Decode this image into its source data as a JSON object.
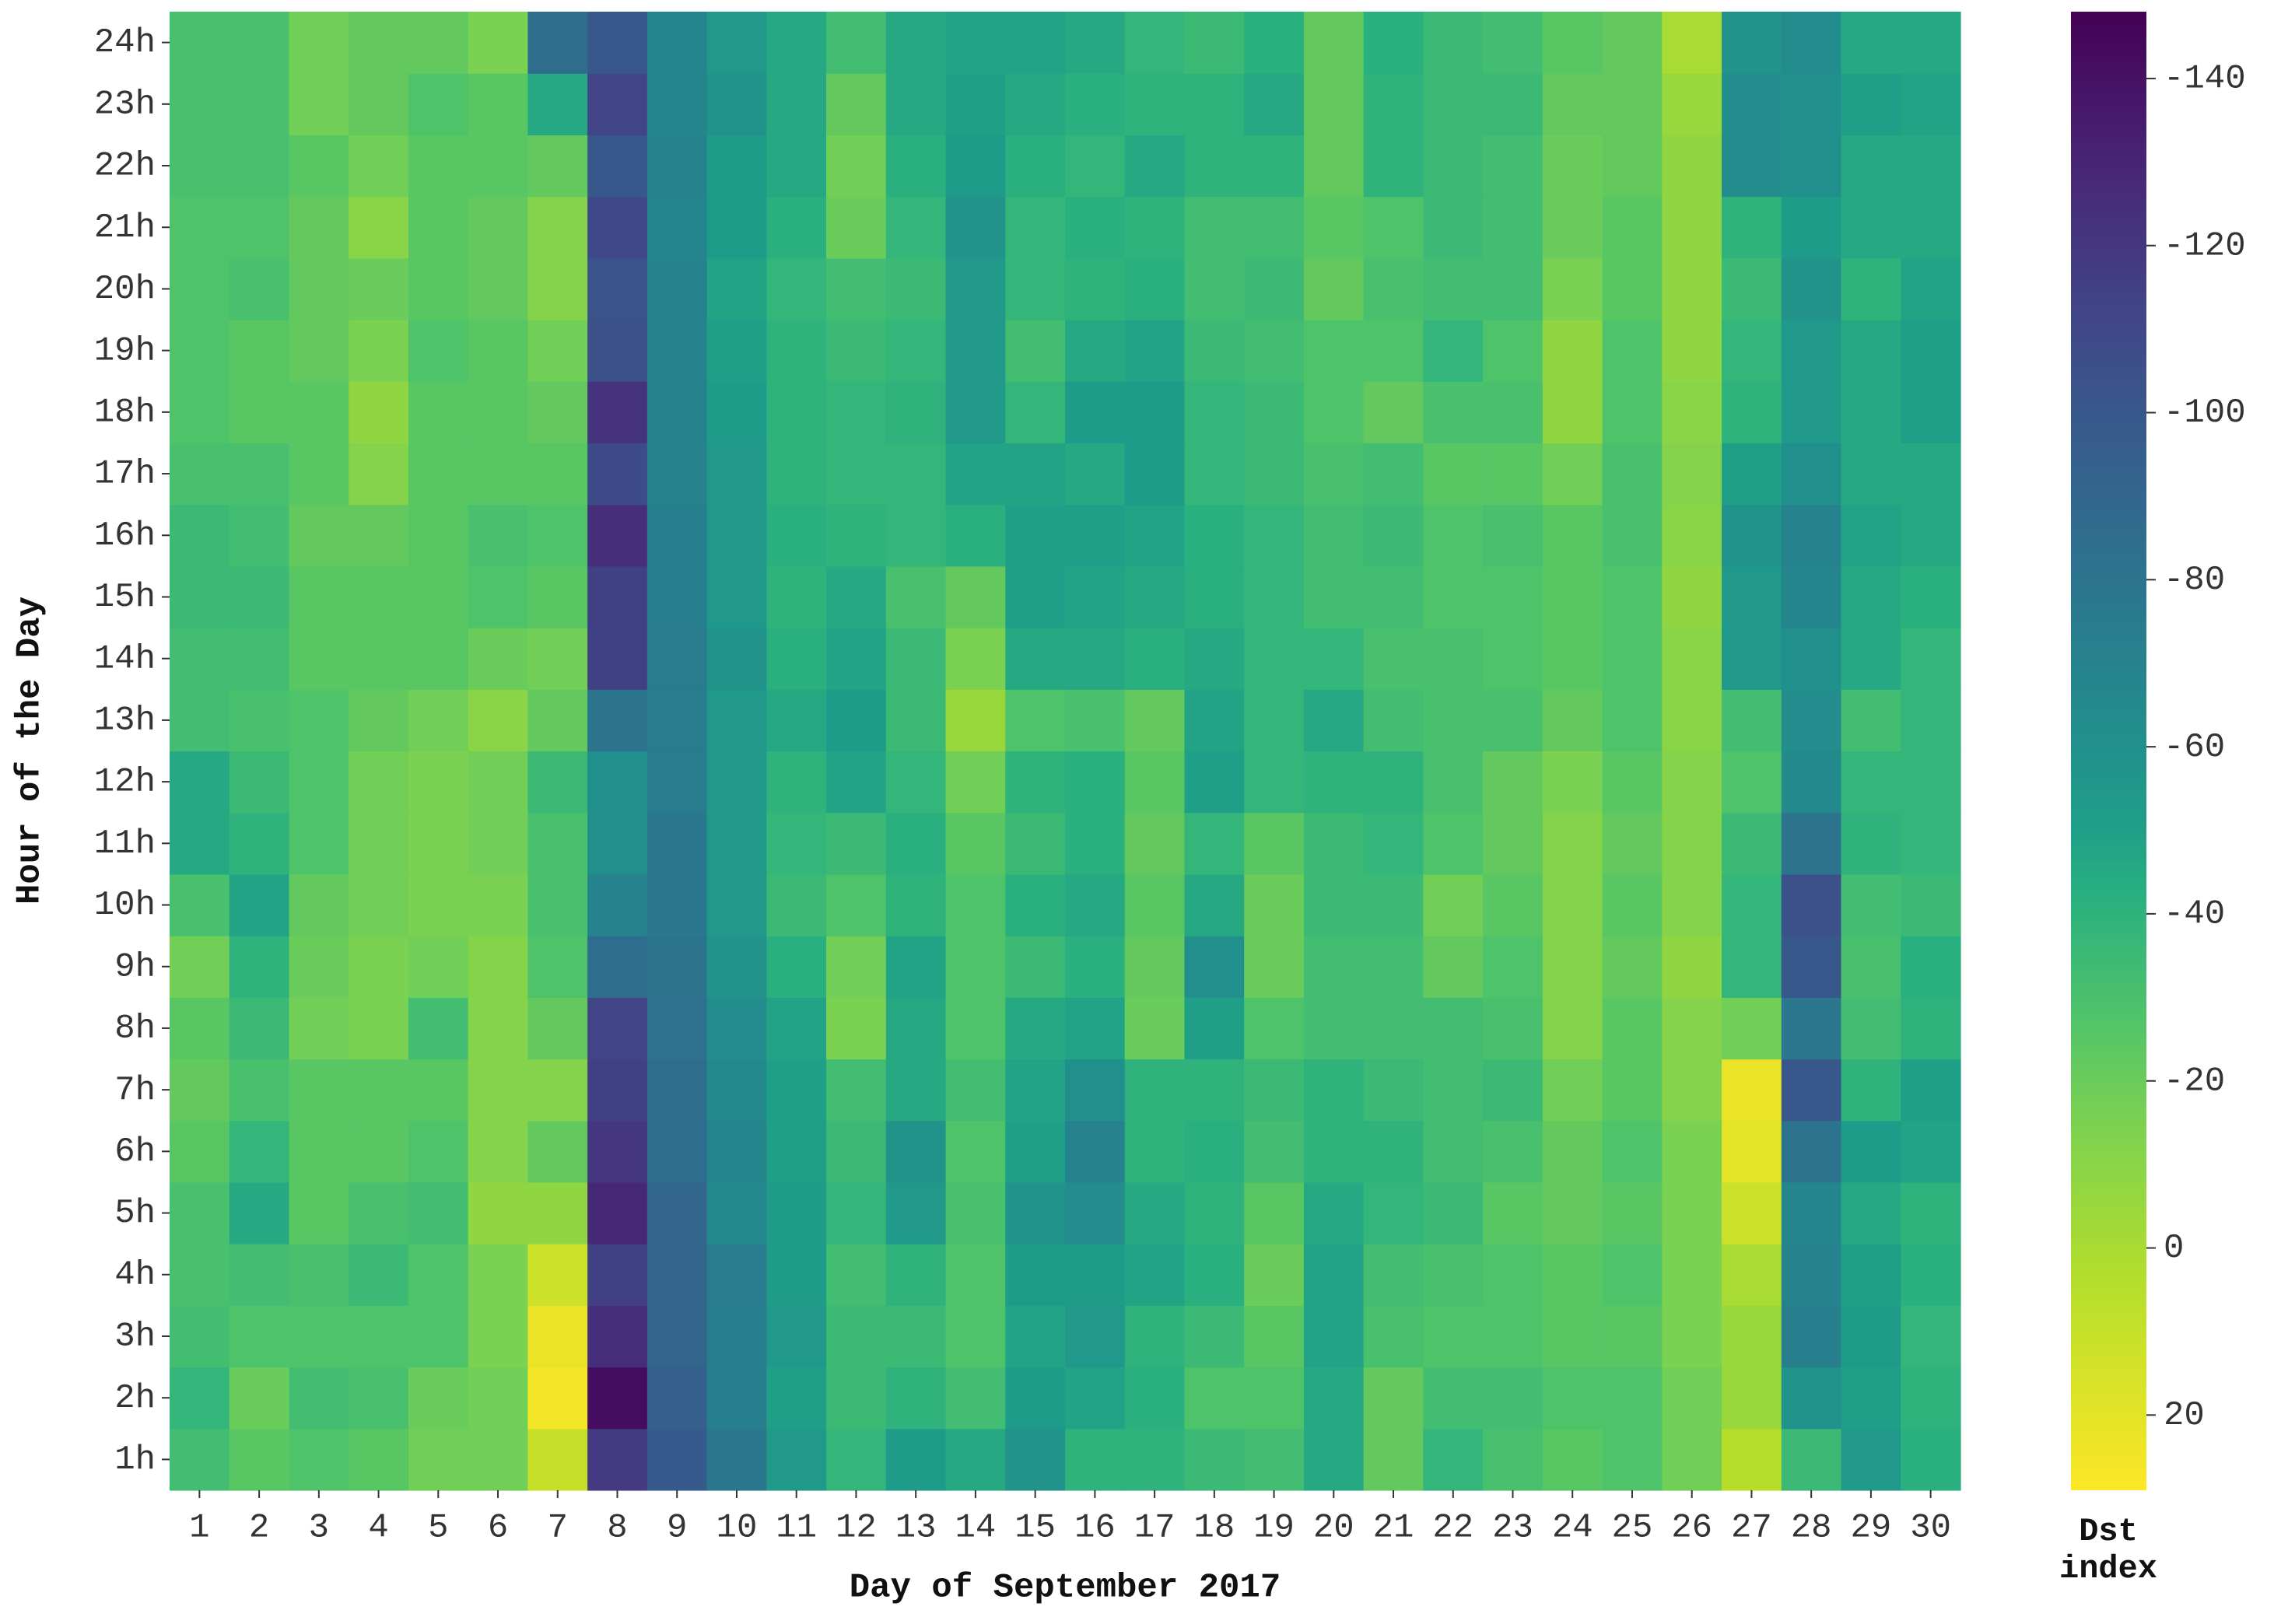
{
  "chart_data": {
    "type": "heatmap",
    "x_label": "Day of September 2017",
    "y_label": "Hour of the Day",
    "colorbar_label": "Dst index",
    "colormap": "viridis",
    "categories": [
      "1",
      "2",
      "3",
      "4",
      "5",
      "6",
      "7",
      "8",
      "9",
      "10",
      "11",
      "12",
      "13",
      "14",
      "15",
      "16",
      "17",
      "18",
      "19",
      "20",
      "21",
      "22",
      "23",
      "24",
      "25",
      "26",
      "27",
      "28",
      "29",
      "30"
    ],
    "y_categories": [
      "1h",
      "2h",
      "3h",
      "4h",
      "5h",
      "6h",
      "7h",
      "8h",
      "9h",
      "10h",
      "11h",
      "12h",
      "13h",
      "14h",
      "15h",
      "16h",
      "17h",
      "18h",
      "19h",
      "20h",
      "21h",
      "22h",
      "23h",
      "24h"
    ],
    "z": [
      [
        -32,
        -25,
        -28,
        -25,
        -18,
        -18,
        10,
        -118,
        -98,
        -78,
        -55,
        -38,
        -52,
        -45,
        -58,
        -40,
        -40,
        -35,
        -32,
        -45,
        -22,
        -38,
        -30,
        -25,
        -28,
        -18,
        5,
        -35,
        -55,
        -42
      ],
      [
        -38,
        -20,
        -32,
        -30,
        -20,
        -18,
        26,
        -142,
        -95,
        -72,
        -50,
        -35,
        -40,
        -32,
        -52,
        -48,
        -42,
        -28,
        -28,
        -45,
        -22,
        -32,
        -32,
        -28,
        -28,
        -18,
        -5,
        -58,
        -50,
        -40
      ],
      [
        -32,
        -28,
        -28,
        -28,
        -28,
        -15,
        22,
        -125,
        -90,
        -72,
        -55,
        -35,
        -35,
        -28,
        -48,
        -55,
        -40,
        -35,
        -25,
        -48,
        -30,
        -28,
        -28,
        -25,
        -25,
        -15,
        -5,
        -72,
        -52,
        -38
      ],
      [
        -30,
        -32,
        -30,
        -35,
        -28,
        -15,
        12,
        -115,
        -90,
        -75,
        -52,
        -32,
        -40,
        -28,
        -52,
        -52,
        -48,
        -42,
        -20,
        -48,
        -32,
        -30,
        -28,
        -25,
        -28,
        -15,
        0,
        -70,
        -50,
        -42
      ],
      [
        -30,
        -45,
        -25,
        -30,
        -32,
        -8,
        -8,
        -128,
        -90,
        -65,
        -52,
        -38,
        -55,
        -30,
        -58,
        -62,
        -45,
        -40,
        -25,
        -45,
        -38,
        -35,
        -25,
        -22,
        -25,
        -15,
        12,
        -68,
        -45,
        -40
      ],
      [
        -25,
        -38,
        -25,
        -25,
        -28,
        -12,
        -22,
        -120,
        -85,
        -68,
        -50,
        -35,
        -58,
        -28,
        -50,
        -70,
        -40,
        -42,
        -32,
        -40,
        -40,
        -32,
        -30,
        -22,
        -28,
        -15,
        20,
        -80,
        -52,
        -48
      ],
      [
        -22,
        -30,
        -25,
        -25,
        -25,
        -12,
        -12,
        -115,
        -85,
        -65,
        -50,
        -32,
        -45,
        -32,
        -48,
        -60,
        -40,
        -40,
        -35,
        -40,
        -35,
        -32,
        -35,
        -18,
        -25,
        -12,
        22,
        -100,
        -40,
        -50
      ],
      [
        -25,
        -35,
        -18,
        -15,
        -32,
        -12,
        -22,
        -112,
        -82,
        -62,
        -48,
        -15,
        -45,
        -28,
        -45,
        -48,
        -20,
        -50,
        -28,
        -32,
        -32,
        -32,
        -30,
        -12,
        -25,
        -12,
        -18,
        -78,
        -32,
        -40
      ],
      [
        -18,
        -40,
        -20,
        -15,
        -18,
        -12,
        -28,
        -85,
        -80,
        -58,
        -42,
        -18,
        -48,
        -28,
        -35,
        -42,
        -22,
        -60,
        -20,
        -32,
        -32,
        -22,
        -28,
        -12,
        -22,
        -8,
        -38,
        -100,
        -30,
        -42
      ],
      [
        -30,
        -48,
        -22,
        -18,
        -15,
        -15,
        -30,
        -70,
        -78,
        -55,
        -35,
        -28,
        -40,
        -28,
        -42,
        -45,
        -25,
        -45,
        -20,
        -35,
        -35,
        -18,
        -25,
        -12,
        -25,
        -12,
        -38,
        -105,
        -32,
        -35
      ],
      [
        -45,
        -40,
        -28,
        -18,
        -15,
        -18,
        -30,
        -60,
        -78,
        -55,
        -38,
        -35,
        -42,
        -25,
        -35,
        -42,
        -22,
        -38,
        -25,
        -35,
        -38,
        -28,
        -22,
        -12,
        -22,
        -12,
        -35,
        -80,
        -40,
        -38
      ],
      [
        -45,
        -35,
        -28,
        -18,
        -15,
        -18,
        -35,
        -60,
        -75,
        -55,
        -40,
        -48,
        -38,
        -18,
        -40,
        -42,
        -25,
        -50,
        -38,
        -40,
        -40,
        -30,
        -22,
        -15,
        -25,
        -12,
        -28,
        -65,
        -38,
        -38
      ],
      [
        -32,
        -30,
        -28,
        -22,
        -18,
        -10,
        -22,
        -80,
        -75,
        -55,
        -45,
        -52,
        -35,
        -5,
        -28,
        -30,
        -22,
        -48,
        -38,
        -45,
        -32,
        -30,
        -30,
        -22,
        -28,
        -10,
        -32,
        -62,
        -32,
        -38
      ],
      [
        -32,
        -32,
        -25,
        -25,
        -25,
        -20,
        -18,
        -115,
        -75,
        -58,
        -42,
        -48,
        -35,
        -15,
        -45,
        -45,
        -42,
        -45,
        -38,
        -38,
        -30,
        -30,
        -28,
        -25,
        -28,
        -10,
        -55,
        -60,
        -45,
        -38
      ],
      [
        -35,
        -35,
        -25,
        -25,
        -25,
        -28,
        -25,
        -115,
        -72,
        -55,
        -40,
        -45,
        -30,
        -22,
        -50,
        -48,
        -45,
        -42,
        -38,
        -32,
        -32,
        -28,
        -28,
        -25,
        -28,
        -8,
        -55,
        -68,
        -45,
        -42
      ],
      [
        -35,
        -32,
        -22,
        -22,
        -25,
        -30,
        -28,
        -125,
        -72,
        -55,
        -42,
        -40,
        -38,
        -42,
        -50,
        -50,
        -48,
        -42,
        -38,
        -32,
        -35,
        -28,
        -30,
        -25,
        -30,
        -10,
        -58,
        -70,
        -48,
        -45
      ],
      [
        -30,
        -30,
        -25,
        -12,
        -25,
        -25,
        -25,
        -108,
        -70,
        -55,
        -40,
        -38,
        -38,
        -48,
        -48,
        -45,
        -52,
        -38,
        -35,
        -30,
        -32,
        -25,
        -25,
        -18,
        -30,
        -12,
        -50,
        -60,
        -45,
        -45
      ],
      [
        -28,
        -25,
        -25,
        -8,
        -25,
        -25,
        -22,
        -122,
        -70,
        -52,
        -40,
        -38,
        -40,
        -55,
        -38,
        -52,
        -52,
        -38,
        -35,
        -28,
        -22,
        -30,
        -30,
        -8,
        -28,
        -10,
        -40,
        -55,
        -45,
        -50
      ],
      [
        -28,
        -25,
        -22,
        -15,
        -28,
        -25,
        -18,
        -105,
        -70,
        -50,
        -40,
        -35,
        -38,
        -55,
        -32,
        -45,
        -48,
        -35,
        -32,
        -28,
        -28,
        -38,
        -28,
        -8,
        -28,
        -8,
        -38,
        -55,
        -45,
        -50
      ],
      [
        -28,
        -30,
        -22,
        -20,
        -25,
        -22,
        -12,
        -102,
        -70,
        -48,
        -38,
        -32,
        -35,
        -55,
        -38,
        -40,
        -42,
        -32,
        -35,
        -22,
        -30,
        -32,
        -32,
        -15,
        -25,
        -8,
        -35,
        -58,
        -40,
        -48
      ],
      [
        -28,
        -28,
        -22,
        -10,
        -25,
        -22,
        -12,
        -110,
        -68,
        -52,
        -42,
        -20,
        -38,
        -58,
        -38,
        -42,
        -40,
        -32,
        -32,
        -25,
        -28,
        -35,
        -32,
        -20,
        -25,
        -8,
        -40,
        -52,
        -45,
        -45
      ],
      [
        -30,
        -30,
        -25,
        -18,
        -25,
        -25,
        -22,
        -100,
        -70,
        -52,
        -45,
        -18,
        -42,
        -52,
        -42,
        -38,
        -45,
        -40,
        -40,
        -22,
        -40,
        -35,
        -32,
        -20,
        -22,
        -8,
        -62,
        -60,
        -45,
        -45
      ],
      [
        -30,
        -30,
        -18,
        -22,
        -28,
        -25,
        -45,
        -112,
        -68,
        -58,
        -45,
        -22,
        -45,
        -50,
        -45,
        -42,
        -40,
        -40,
        -45,
        -22,
        -40,
        -35,
        -35,
        -22,
        -22,
        -5,
        -62,
        -60,
        -50,
        -48
      ],
      [
        -30,
        -30,
        -18,
        -22,
        -22,
        -15,
        -85,
        -100,
        -68,
        -55,
        -45,
        -32,
        -45,
        -48,
        -48,
        -45,
        -38,
        -35,
        -42,
        -22,
        -42,
        -35,
        -32,
        -25,
        -22,
        0,
        -58,
        -62,
        -45,
        -45
      ]
    ],
    "clim": [
      -148,
      29
    ],
    "cticks": [
      -140,
      -120,
      -100,
      -80,
      -60,
      -40,
      -20,
      0,
      20
    ]
  }
}
